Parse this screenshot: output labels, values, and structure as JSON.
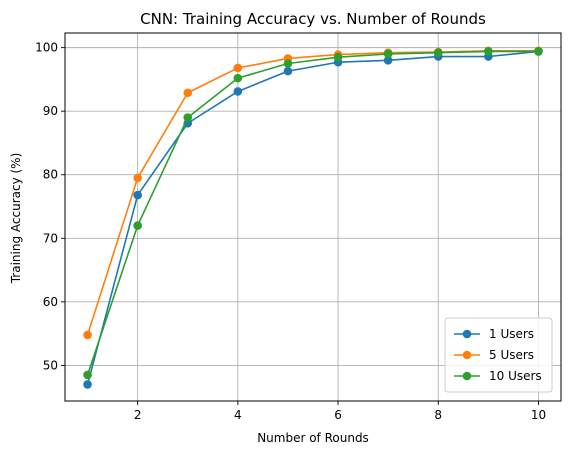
{
  "chart_data": {
    "type": "line",
    "title": "CNN: Training Accuracy vs. Number of Rounds",
    "xlabel": "Number of Rounds",
    "ylabel": "Training Accuracy (%)",
    "x": [
      1,
      2,
      3,
      4,
      5,
      6,
      7,
      8,
      9,
      10
    ],
    "xlim": [
      0.55,
      10.45
    ],
    "ylim": [
      44.4,
      102.3
    ],
    "xticks": [
      2,
      4,
      6,
      8,
      10
    ],
    "yticks": [
      50,
      60,
      70,
      80,
      90,
      100
    ],
    "grid": true,
    "legend_position": "lower-right",
    "series": [
      {
        "name": "1 Users",
        "color": "#1f77b4",
        "values": [
          47.0,
          76.8,
          88.1,
          93.1,
          96.3,
          97.7,
          98.0,
          98.6,
          98.6,
          99.4
        ]
      },
      {
        "name": "5 Users",
        "color": "#ff7f0e",
        "values": [
          54.8,
          79.5,
          92.9,
          96.8,
          98.3,
          98.9,
          99.2,
          99.3,
          99.5,
          99.5
        ]
      },
      {
        "name": "10 Users",
        "color": "#2ca02c",
        "values": [
          48.5,
          72.0,
          89.0,
          95.2,
          97.5,
          98.5,
          99.0,
          99.2,
          99.4,
          99.4
        ]
      }
    ]
  }
}
